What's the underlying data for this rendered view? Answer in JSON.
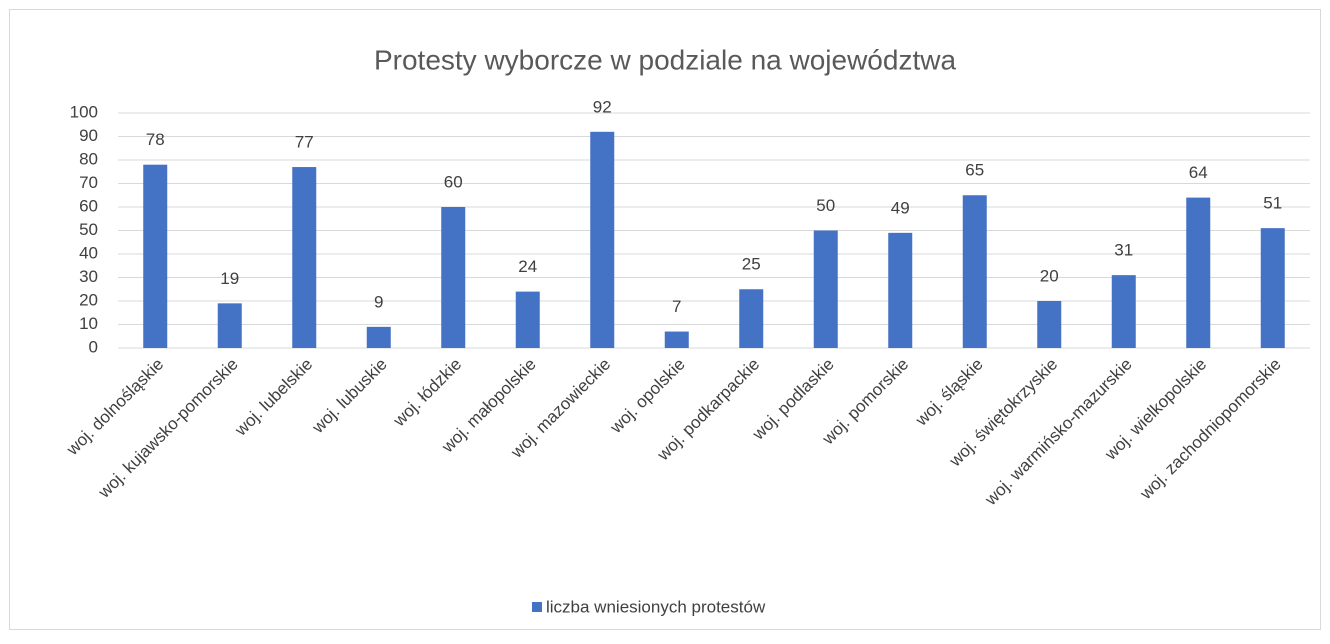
{
  "chart_data": {
    "type": "bar",
    "title": "Protesty wyborcze w podziale na województwa",
    "categories": [
      "woj. dolnośląskie",
      "woj. kujawsko-pomorskie",
      "woj. lubelskie",
      "woj. lubuskie",
      "woj. łódzkie",
      "woj. małopolskie",
      "woj. mazowieckie",
      "woj. opolskie",
      "woj. podkarpackie",
      "woj. podlaskie",
      "woj. pomorskie",
      "woj. śląskie",
      "woj. świętokrzyskie",
      "woj. warmińsko-mazurskie",
      "woj. wielkopolskie",
      "woj. zachodniopomorskie"
    ],
    "series": [
      {
        "name": "liczba wniesionych protestów",
        "color": "#4472c4",
        "values": [
          78,
          19,
          77,
          9,
          60,
          24,
          92,
          7,
          25,
          50,
          49,
          65,
          20,
          31,
          64,
          51
        ]
      }
    ],
    "ylim": [
      0,
      100
    ],
    "yticks": [
      0,
      10,
      20,
      30,
      40,
      50,
      60,
      70,
      80,
      90,
      100
    ],
    "grid": true,
    "legend": "bottom",
    "data_labels": true
  }
}
